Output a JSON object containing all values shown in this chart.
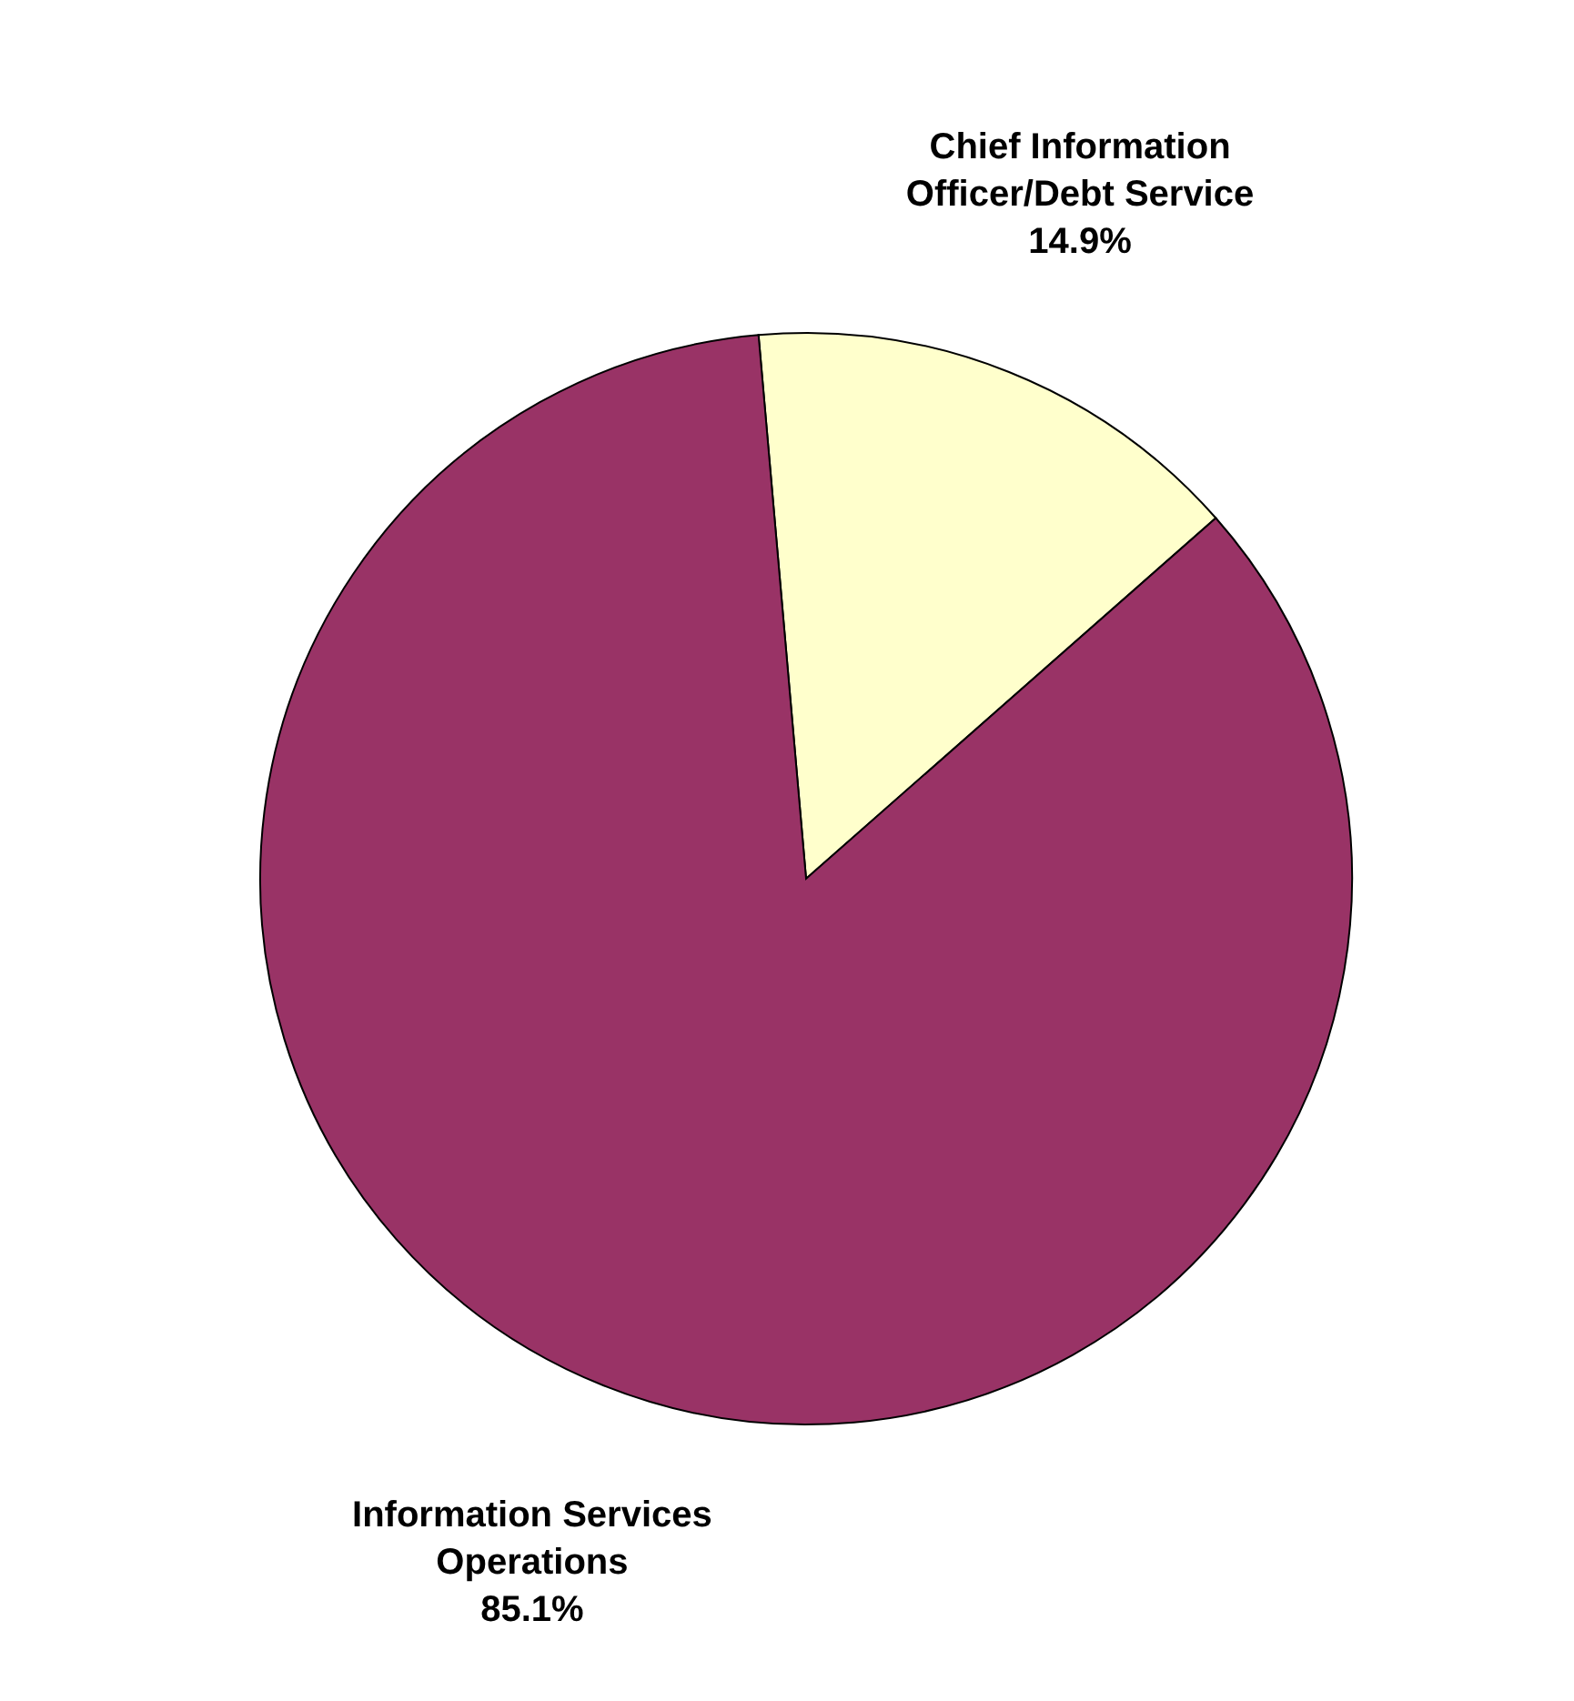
{
  "chart_data": {
    "type": "pie",
    "categories": [
      "Chief Information Officer/Debt Service",
      "Information Services Operations"
    ],
    "values": [
      14.9,
      85.1
    ],
    "colors": [
      "#ffffcc",
      "#993366"
    ],
    "value_labels": [
      "14.9%",
      "85.1%"
    ],
    "legend": false
  }
}
